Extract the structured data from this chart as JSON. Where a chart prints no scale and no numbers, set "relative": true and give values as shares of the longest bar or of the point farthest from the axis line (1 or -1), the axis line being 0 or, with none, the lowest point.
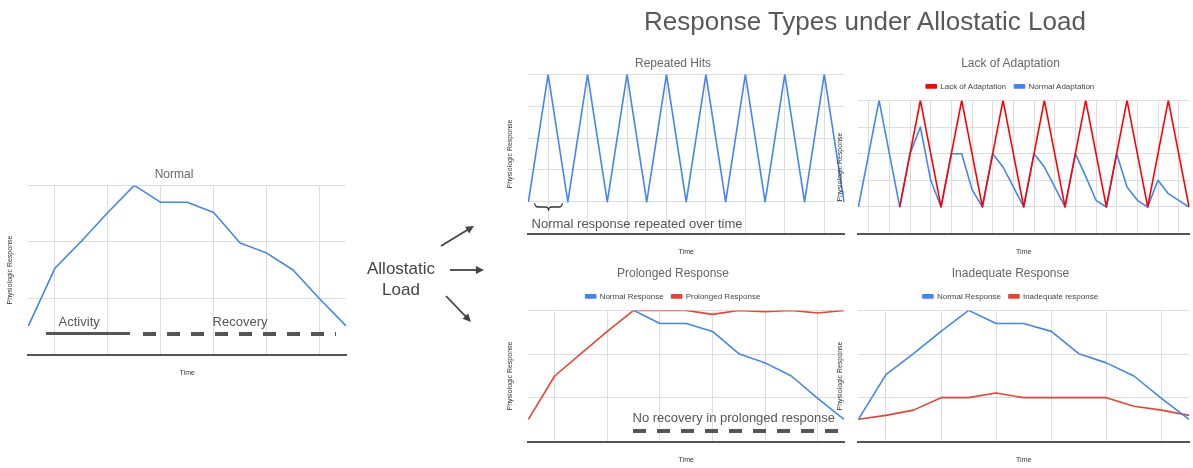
{
  "chart_data": [
    {
      "type": "line",
      "title": "Normal",
      "xlabel": "Time",
      "ylabel": "Physiologic Response",
      "relative": true,
      "grid": true,
      "categories": [
        null,
        null,
        null,
        null,
        null,
        null,
        null,
        null,
        null,
        null,
        null,
        null,
        null
      ],
      "values": [
        0.17,
        0.51,
        0.67,
        0.84,
        1,
        0.9,
        0.9,
        0.84,
        0.66,
        0.6,
        0.5,
        0.33,
        0.17
      ],
      "color": "#4285f4",
      "annotations": [
        "Activity",
        "Recovery"
      ]
    },
    {
      "type": "other",
      "title": "Response Types under Allostatic Load",
      "annotations": [
        "Allostatic Load"
      ]
    },
    {
      "type": "line",
      "title": "Repeated Hits",
      "xlabel": "Time",
      "ylabel": "Physiologic Response",
      "relative": true,
      "grid": true,
      "categories": [
        null,
        null,
        null,
        null,
        null,
        null,
        null,
        null,
        null,
        null,
        null,
        null,
        null,
        null,
        null,
        null,
        null
      ],
      "values": [
        0.2,
        1,
        0.2,
        1,
        0.2,
        1,
        0.2,
        1,
        0.2,
        1,
        0.2,
        1,
        0.2,
        1,
        0.2,
        1,
        0.2
      ],
      "color": "#4285f4",
      "annotations": [
        "Normal response repeated over time"
      ]
    },
    {
      "type": "line",
      "title": "Lack of Adaptation",
      "xlabel": "Time",
      "ylabel": "Physiologic Response",
      "relative": true,
      "grid": true,
      "legend": "top",
      "categories": [
        null,
        null,
        null,
        null,
        null,
        null,
        null,
        null,
        null,
        null,
        null,
        null,
        null,
        null,
        null,
        null,
        null,
        null,
        null,
        null,
        null,
        null,
        null,
        null,
        null,
        null,
        null,
        null,
        null,
        null,
        null,
        null,
        null
      ],
      "series": [
        {
          "name": "Lack of Adaptation",
          "color": "#ff0000",
          "values": [
            null,
            null,
            null,
            null,
            0.2,
            0.6,
            1,
            0.6,
            0.2,
            0.6,
            1,
            0.6,
            0.2,
            0.6,
            1,
            0.6,
            0.2,
            0.6,
            1,
            0.6,
            0.2,
            0.6,
            1,
            0.6,
            0.2,
            0.6,
            1,
            0.6,
            0.2,
            0.6,
            1,
            0.6,
            0.2
          ]
        },
        {
          "name": "Normal Adaptation",
          "color": "#4285f4",
          "values": [
            0.2,
            0.6,
            1,
            0.6,
            0.2,
            0.6,
            0.8,
            0.4,
            0.2,
            0.6,
            0.6,
            0.33,
            0.2,
            0.6,
            0.5,
            0.35,
            0.2,
            0.6,
            0.5,
            0.35,
            0.2,
            0.6,
            0.43,
            0.25,
            0.2,
            0.6,
            0.35,
            0.25,
            0.2,
            0.4,
            0.3,
            0.25,
            0.2
          ]
        }
      ]
    },
    {
      "type": "line",
      "title": "Prolonged Response",
      "xlabel": "Time",
      "ylabel": "Physiologic Response",
      "relative": true,
      "grid": true,
      "legend": "top",
      "categories": [
        null,
        null,
        null,
        null,
        null,
        null,
        null,
        null,
        null,
        null,
        null,
        null,
        null
      ],
      "series": [
        {
          "name": "Normal Response",
          "color": "#4285f4",
          "values": [
            null,
            null,
            null,
            null,
            1,
            0.9,
            0.9,
            0.84,
            0.67,
            0.6,
            0.5,
            0.33,
            0.17
          ]
        },
        {
          "name": "Prolonged Response",
          "color": "#ea4335",
          "values": [
            0.17,
            0.5,
            0.67,
            0.84,
            1,
            1,
            1,
            0.97,
            1,
            0.99,
            1,
            0.98,
            1
          ]
        }
      ],
      "annotations": [
        "No recovery in prolonged response"
      ]
    },
    {
      "type": "line",
      "title": "Inadequate Response",
      "xlabel": "Time",
      "ylabel": "Physiologic Response",
      "relative": true,
      "grid": true,
      "legend": "top",
      "categories": [
        null,
        null,
        null,
        null,
        null,
        null,
        null,
        null,
        null,
        null,
        null,
        null,
        null
      ],
      "series": [
        {
          "name": "Normal Response",
          "color": "#4285f4",
          "values": [
            0.17,
            0.51,
            0.67,
            0.84,
            1,
            0.9,
            0.9,
            0.84,
            0.67,
            0.6,
            0.5,
            0.33,
            0.17
          ]
        },
        {
          "name": "Inadequate response",
          "color": "#ea4335",
          "values": [
            0.17,
            0.2,
            0.24,
            0.335,
            0.335,
            0.37,
            0.335,
            0.335,
            0.335,
            0.335,
            0.27,
            0.24,
            0.2
          ]
        }
      ]
    }
  ]
}
